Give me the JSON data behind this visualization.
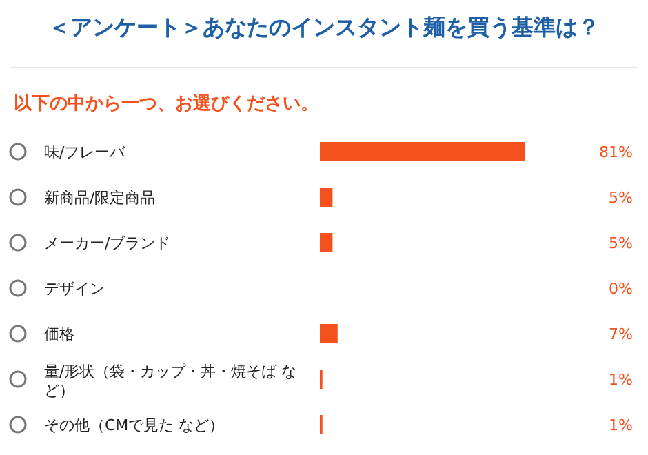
{
  "chart_data": {
    "type": "bar",
    "orientation": "horizontal",
    "title": "＜アンケート＞あなたのインスタント麺を買う基準は？",
    "subtitle": "以下の中から一つ、お選びください。",
    "categories": [
      "味/フレーバ",
      "新商品/限定商品",
      "メーカー/ブランド",
      "デザイン",
      "価格",
      "量/形状（袋・カップ・丼・焼そば など）",
      "その他（CMで見た など）"
    ],
    "values": [
      81,
      5,
      5,
      0,
      7,
      1,
      1
    ],
    "value_labels": [
      "81%",
      "5%",
      "5%",
      "0%",
      "7%",
      "1%",
      "1%"
    ],
    "color": "#f5511e"
  }
}
